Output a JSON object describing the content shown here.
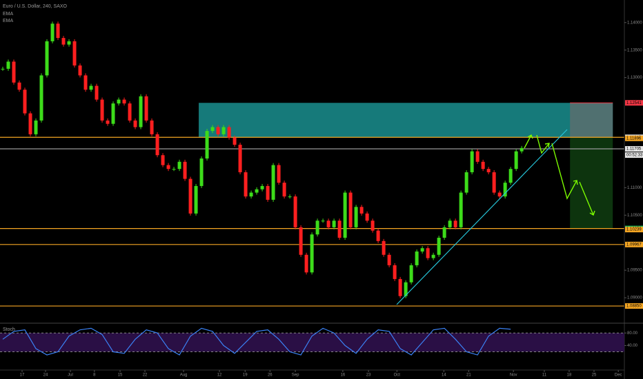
{
  "chart_data": {
    "type": "candlestick",
    "title": "Euro / U.S. Dollar, 240, SAXO",
    "indicator_labels": [
      "EMA",
      "EMA"
    ],
    "up_color": "#3ddc1a",
    "down_color": "#ff1f1f",
    "values": [
      1.1316,
      1.1329,
      1.1291,
      1.1278,
      1.1235,
      1.1197,
      1.1222,
      1.1304,
      1.1366,
      1.1398,
      1.1372,
      1.136,
      1.1366,
      1.1322,
      1.1304,
      1.1278,
      1.1285,
      1.126,
      1.1222,
      1.1216,
      1.1253,
      1.126,
      1.1253,
      1.1222,
      1.121,
      1.1266,
      1.1222,
      1.1197,
      1.1159,
      1.1141,
      1.1134,
      1.1134,
      1.1147,
      1.1116,
      1.1053,
      1.1103,
      1.1153,
      1.1203,
      1.121,
      1.1197,
      1.121,
      1.1191,
      1.1178,
      1.1128,
      1.1084,
      1.1091,
      1.1097,
      1.1103,
      1.1078,
      1.1141,
      1.1109,
      1.1084,
      1.1084,
      1.1028,
      1.0978,
      1.0946,
      1.1015,
      1.104,
      1.104,
      1.1028,
      1.104,
      1.1009,
      1.1091,
      1.1028,
      1.1065,
      1.1053,
      1.104,
      1.1022,
      1.1003,
      1.0978,
      1.0959,
      1.0934,
      1.0903,
      1.0928,
      1.0959,
      1.0984,
      1.099,
      1.0972,
      1.0978,
      1.1009,
      1.1028,
      1.104,
      1.1028,
      1.1091,
      1.1128,
      1.1166,
      1.1147,
      1.1134,
      1.1128,
      1.1091,
      1.1084,
      1.1109,
      1.1134,
      1.1166,
      1.1172
    ],
    "xlim": [
      -0.5,
      112.6
    ],
    "ylim": [
      1.0855,
      1.1441
    ],
    "yticks": [
      {
        "value": 1.14,
        "label": "1.14000"
      },
      {
        "value": 1.135,
        "label": "1.13500"
      },
      {
        "value": 1.13,
        "label": "1.13000"
      },
      {
        "value": 1.11,
        "label": "1.11000"
      },
      {
        "value": 1.105,
        "label": "1.10500"
      },
      {
        "value": 1.095,
        "label": "1.09500"
      },
      {
        "value": 1.09,
        "label": "1.09000"
      }
    ],
    "xticks": [
      {
        "value": 3.5,
        "label": "17"
      },
      {
        "value": 7.75,
        "label": "24"
      },
      {
        "value": 12.25,
        "label": "Jul"
      },
      {
        "value": 16.6,
        "label": "8"
      },
      {
        "value": 21.25,
        "label": "15"
      },
      {
        "value": 25.75,
        "label": "22"
      },
      {
        "value": 32.75,
        "label": "Aug"
      },
      {
        "value": 39.25,
        "label": "12"
      },
      {
        "value": 43.9,
        "label": "19"
      },
      {
        "value": 48.4,
        "label": "26"
      },
      {
        "value": 53,
        "label": "Sep"
      },
      {
        "value": 61.6,
        "label": "16"
      },
      {
        "value": 66.25,
        "label": "23"
      },
      {
        "value": 71.4,
        "label": "Oct"
      },
      {
        "value": 79.9,
        "label": "14"
      },
      {
        "value": 84.4,
        "label": "21"
      },
      {
        "value": 92.5,
        "label": "Nov"
      },
      {
        "value": 98.1,
        "label": "11"
      },
      {
        "value": 102.6,
        "label": "18"
      },
      {
        "value": 107.1,
        "label": "25"
      },
      {
        "value": 111.5,
        "label": "Dec"
      }
    ],
    "levels": [
      {
        "value": 1.12541,
        "label": "1.12541",
        "color": "#f23645",
        "line": false
      },
      {
        "value": 1.11915,
        "label": "1.11915",
        "color": "#d9d9d9",
        "line": true,
        "line_color": "#f5a623"
      },
      {
        "value": 1.11896,
        "label": "1.11896",
        "color": "#f5a623",
        "line": false
      },
      {
        "value": 1.11705,
        "label": "1.11705",
        "color": "#e6e6e6",
        "line": true,
        "line_color": "#9a9a9a"
      },
      {
        "value": 1.10258,
        "label": "1.10258",
        "color": "#22c55e",
        "line": true,
        "line_color": "#f5a623"
      },
      {
        "value": 1.10239,
        "label": "1.10239",
        "color": "#f5a623",
        "line": false
      },
      {
        "value": 1.09967,
        "label": "1.09967",
        "color": "#f5a623",
        "line": true,
        "line_color": "#f5a623"
      },
      {
        "value": 1.0885,
        "label": "1.08850",
        "color": "#f5a623",
        "line": true,
        "line_color": "#f5a623"
      }
    ],
    "countdown": "00:52:33",
    "zones": [
      {
        "x": [
          35.5,
          110.5
        ],
        "y": [
          1.11915,
          1.12541
        ],
        "color": "#1a8f8f"
      },
      {
        "x": [
          102.75,
          110.5
        ],
        "y": [
          1.11915,
          1.12541
        ],
        "color": "#5a6e6e"
      },
      {
        "x": [
          102.75,
          110.5
        ],
        "y": [
          1.10258,
          1.11915
        ],
        "color": "#0f3d10"
      }
    ],
    "stoch": {
      "label": "Stoch",
      "x": [
        0,
        2,
        4,
        6,
        8,
        10,
        12,
        14,
        16,
        18,
        20,
        22,
        24,
        26,
        28,
        30,
        32,
        34,
        36,
        38,
        40,
        42,
        44,
        46,
        48,
        50,
        52,
        54,
        56,
        58,
        60,
        62,
        64,
        66,
        68,
        70,
        72,
        74,
        76,
        78,
        80,
        82,
        84,
        86,
        88,
        90,
        92
      ],
      "values": [
        60,
        85,
        90,
        30,
        10,
        20,
        70,
        90,
        95,
        75,
        20,
        15,
        60,
        90,
        80,
        30,
        10,
        70,
        95,
        85,
        40,
        15,
        50,
        85,
        90,
        60,
        20,
        10,
        70,
        95,
        80,
        40,
        15,
        60,
        90,
        85,
        30,
        10,
        50,
        90,
        95,
        60,
        20,
        10,
        70,
        95,
        92
      ],
      "ylim": [
        -36,
        109
      ],
      "yticks": [
        {
          "value": 80,
          "label": "80.00"
        },
        {
          "value": 40,
          "label": "40.00"
        }
      ],
      "bands": [
        80,
        20
      ],
      "color": "#3b82f6"
    }
  }
}
